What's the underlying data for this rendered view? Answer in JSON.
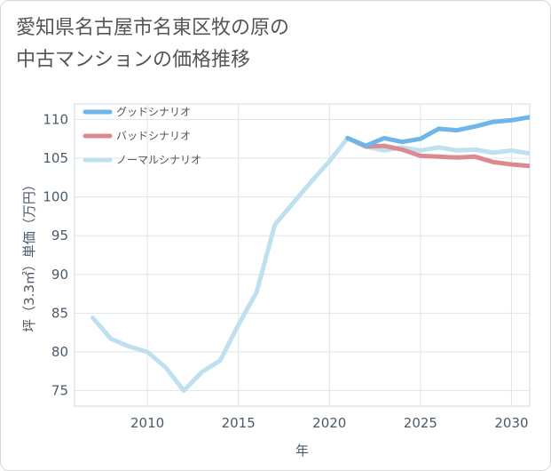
{
  "title_lines": [
    "愛知県名古屋市名東区牧の原の",
    "中古マンションの価格推移"
  ],
  "chart_data": {
    "type": "line",
    "xlabel": "年",
    "ylabel": "坪（3.3㎡）単価（万円）",
    "xlim": [
      2006,
      2031
    ],
    "ylim": [
      73,
      112
    ],
    "xticks": [
      2010,
      2015,
      2020,
      2025,
      2030
    ],
    "yticks": [
      75,
      80,
      85,
      90,
      95,
      100,
      105,
      110
    ],
    "grid": true,
    "legend_position": "top-left",
    "series": [
      {
        "name": "グッドシナリオ",
        "color": "#6db5ea",
        "x": [
          2021,
          2022,
          2023,
          2024,
          2025,
          2026,
          2027,
          2028,
          2029,
          2030,
          2031
        ],
        "values": [
          107.6,
          106.6,
          107.6,
          107.1,
          107.5,
          108.8,
          108.6,
          109.1,
          109.7,
          109.9,
          110.3
        ]
      },
      {
        "name": "バッドシナリオ",
        "color": "#dc8a8f",
        "x": [
          2021,
          2022,
          2023,
          2024,
          2025,
          2026,
          2027,
          2028,
          2029,
          2030,
          2031
        ],
        "values": [
          107.6,
          106.5,
          106.6,
          106.1,
          105.3,
          105.2,
          105.1,
          105.2,
          104.5,
          104.2,
          104.0
        ]
      },
      {
        "name": "ノーマルシナリオ",
        "color": "#bfe0ee",
        "x": [
          2007,
          2008,
          2009,
          2010,
          2011,
          2012,
          2013,
          2014,
          2015,
          2016,
          2017,
          2018,
          2019,
          2020,
          2021,
          2022,
          2023,
          2024,
          2025,
          2026,
          2027,
          2028,
          2029,
          2030,
          2031
        ],
        "values": [
          84.4,
          81.7,
          80.7,
          80.0,
          78.0,
          75.0,
          77.4,
          78.9,
          83.5,
          87.7,
          96.4,
          99.2,
          102.0,
          104.6,
          107.6,
          106.5,
          106.0,
          106.4,
          106.0,
          106.4,
          106.0,
          106.1,
          105.7,
          106.0,
          105.6
        ]
      }
    ]
  }
}
